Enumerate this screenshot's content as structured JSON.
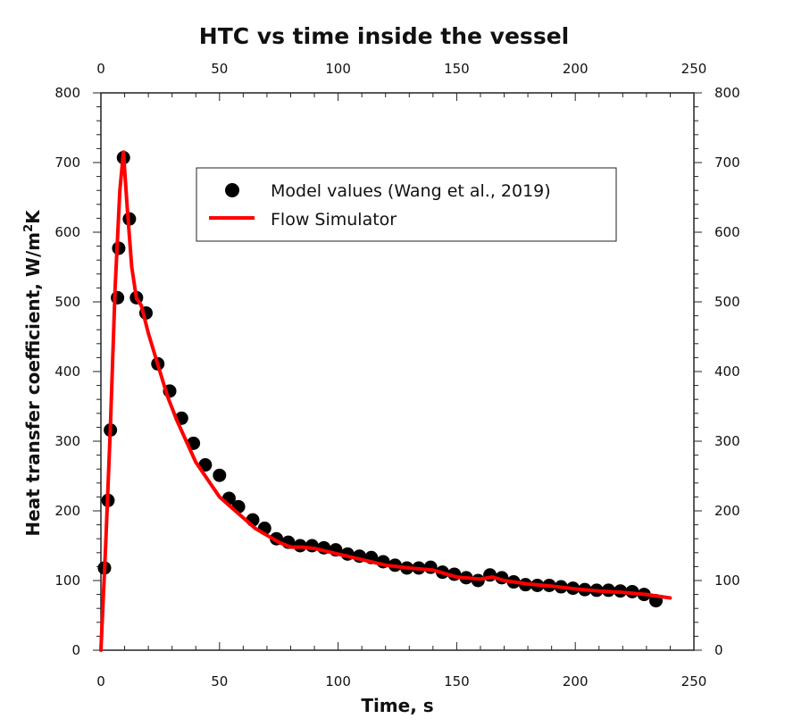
{
  "chart_data": {
    "type": "line+scatter",
    "title": "HTC vs time inside the vessel",
    "xlabel": "Time, s",
    "ylabel_main": "Heat transfer coefficient, W/m",
    "ylabel_sup": "2",
    "ylabel_tail": "K",
    "xlim": [
      0,
      250
    ],
    "ylim": [
      0,
      800
    ],
    "x_ticks": [
      "0",
      "50",
      "100",
      "150",
      "200",
      "250"
    ],
    "y_ticks": [
      "0",
      "100",
      "200",
      "300",
      "400",
      "500",
      "600",
      "700",
      "800"
    ],
    "grid": false,
    "legend_position": "upper-center",
    "series": [
      {
        "name": "Model values (Wang et al., 2019)",
        "kind": "scatter",
        "color": "#000000",
        "x": [
          1.5,
          3,
          4,
          7,
          7.5,
          9.5,
          12,
          15,
          19,
          24,
          29,
          34,
          39,
          44,
          50,
          54,
          58,
          64,
          69,
          74,
          79,
          84,
          89,
          94,
          99,
          104,
          109,
          114,
          119,
          124,
          129,
          134,
          139,
          144,
          149,
          154,
          159,
          164,
          169,
          174,
          179,
          184,
          189,
          194,
          199,
          204,
          209,
          214,
          219,
          224,
          229,
          234
        ],
        "y": [
          118,
          215,
          316,
          506,
          577,
          707,
          619,
          506,
          484,
          411,
          372,
          333,
          297,
          266,
          251,
          218,
          206,
          187,
          175,
          160,
          155,
          150,
          150,
          147,
          144,
          138,
          135,
          133,
          127,
          122,
          118,
          118,
          119,
          112,
          109,
          104,
          100,
          108,
          104,
          98,
          94,
          93,
          93,
          91,
          89,
          87,
          86,
          86,
          85,
          84,
          80,
          71
        ]
      },
      {
        "name": "Flow Simulator",
        "kind": "line",
        "color": "#ff0000",
        "x": [
          0,
          2,
          4,
          6,
          8,
          9.5,
          11,
          13,
          15,
          17,
          20,
          24,
          28,
          32,
          36,
          40,
          45,
          50,
          55,
          60,
          65,
          70,
          75,
          80,
          85,
          90,
          95,
          100,
          110,
          120,
          130,
          140,
          150,
          160,
          165,
          170,
          180,
          190,
          200,
          210,
          220,
          230,
          240
        ],
        "y": [
          0,
          150,
          320,
          520,
          660,
          715,
          640,
          550,
          505,
          495,
          455,
          410,
          365,
          330,
          300,
          270,
          245,
          220,
          205,
          190,
          175,
          165,
          155,
          148,
          148,
          146,
          142,
          138,
          130,
          122,
          118,
          115,
          105,
          102,
          105,
          100,
          95,
          92,
          88,
          85,
          83,
          80,
          75
        ]
      }
    ]
  }
}
